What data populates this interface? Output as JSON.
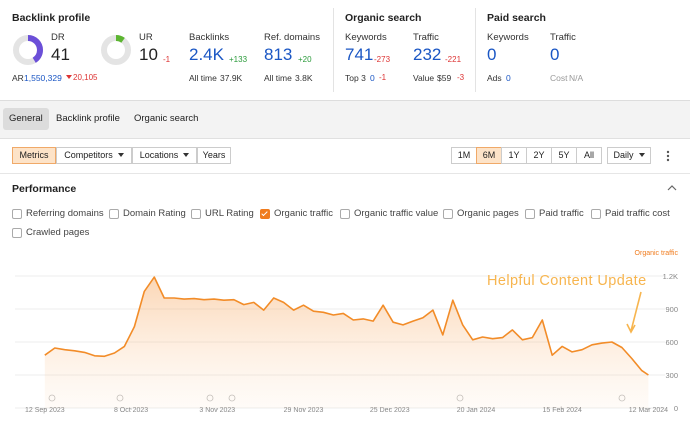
{
  "backlink_profile": {
    "title": "Backlink profile",
    "dr": {
      "label": "DR",
      "value": 41,
      "color": "#6b4fd8"
    },
    "ar": {
      "label": "AR",
      "value": "1,550,329",
      "change": "20,105"
    },
    "ur": {
      "label": "UR",
      "value": 10,
      "change": "-1",
      "color": "#5cb531"
    },
    "backlinks": {
      "label": "Backlinks",
      "value": "2.4K",
      "change": "+133",
      "sub_label": "All time",
      "sub_value": "37.9K"
    },
    "ref_domains": {
      "label": "Ref. domains",
      "value": "813",
      "change": "+20",
      "sub_label": "All time",
      "sub_value": "3.8K"
    }
  },
  "organic_search": {
    "title": "Organic search",
    "keywords": {
      "label": "Keywords",
      "value": "741",
      "change": "-273",
      "sub_label": "Top 3",
      "sub_value": "0",
      "sub_change": "-1"
    },
    "traffic": {
      "label": "Traffic",
      "value": "232",
      "change": "-221",
      "sub_label": "Value",
      "sub_value": "$59",
      "sub_change": "-3"
    }
  },
  "paid_search": {
    "title": "Paid search",
    "keywords": {
      "label": "Keywords",
      "value": "0",
      "sub_label": "Ads",
      "sub_value": "0"
    },
    "traffic": {
      "label": "Traffic",
      "value": "0",
      "sub_label": "Cost",
      "sub_value": "N/A"
    }
  },
  "tabs": [
    {
      "label": "General",
      "active": true
    },
    {
      "label": "Backlink profile",
      "active": false
    },
    {
      "label": "Organic search",
      "active": false
    }
  ],
  "toolbar": {
    "filters": [
      {
        "label": "Metrics",
        "active": true,
        "dropdown": false
      },
      {
        "label": "Competitors",
        "active": false,
        "dropdown": true
      },
      {
        "label": "Locations",
        "active": false,
        "dropdown": true
      },
      {
        "label": "Years",
        "active": false,
        "dropdown": false
      }
    ],
    "ranges": [
      {
        "label": "1M",
        "active": false
      },
      {
        "label": "6M",
        "active": true
      },
      {
        "label": "1Y",
        "active": false
      },
      {
        "label": "2Y",
        "active": false
      },
      {
        "label": "5Y",
        "active": false
      },
      {
        "label": "All",
        "active": false
      }
    ],
    "interval": "Daily"
  },
  "performance": {
    "title": "Performance",
    "metrics": [
      {
        "label": "Referring domains",
        "checked": false
      },
      {
        "label": "Domain Rating",
        "checked": false
      },
      {
        "label": "URL Rating",
        "checked": false
      },
      {
        "label": "Organic traffic",
        "checked": true
      },
      {
        "label": "Organic traffic value",
        "checked": false
      },
      {
        "label": "Organic pages",
        "checked": false
      },
      {
        "label": "Paid traffic",
        "checked": false
      },
      {
        "label": "Paid traffic cost",
        "checked": false
      },
      {
        "label": "Crawled pages",
        "checked": false
      }
    ]
  },
  "chart_data": {
    "type": "line",
    "y_label": "Organic traffic",
    "annotation": "Helpful Content Update",
    "color": "#f28c28",
    "grid": true,
    "x": [
      "2023-09-12",
      "2023-09-15",
      "2023-09-18",
      "2023-09-21",
      "2023-09-24",
      "2023-09-27",
      "2023-09-30",
      "2023-10-03",
      "2023-10-06",
      "2023-10-09",
      "2023-10-12",
      "2023-10-15",
      "2023-10-18",
      "2023-10-21",
      "2023-10-24",
      "2023-10-27",
      "2023-10-30",
      "2023-11-02",
      "2023-11-05",
      "2023-11-08",
      "2023-11-11",
      "2023-11-14",
      "2023-11-17",
      "2023-11-20",
      "2023-11-23",
      "2023-11-26",
      "2023-11-29",
      "2023-12-02",
      "2023-12-05",
      "2023-12-08",
      "2023-12-11",
      "2023-12-14",
      "2023-12-17",
      "2023-12-20",
      "2023-12-23",
      "2023-12-26",
      "2023-12-29",
      "2024-01-01",
      "2024-01-04",
      "2024-01-07",
      "2024-01-10",
      "2024-01-13",
      "2024-01-16",
      "2024-01-19",
      "2024-01-22",
      "2024-01-25",
      "2024-01-28",
      "2024-01-31",
      "2024-02-03",
      "2024-02-06",
      "2024-02-09",
      "2024-02-12",
      "2024-02-15",
      "2024-02-18",
      "2024-02-21",
      "2024-02-24",
      "2024-02-27",
      "2024-03-01",
      "2024-03-04",
      "2024-03-07",
      "2024-03-10",
      "2024-03-12"
    ],
    "values": [
      480,
      545,
      530,
      520,
      505,
      475,
      470,
      500,
      560,
      740,
      1060,
      1190,
      1000,
      1000,
      990,
      995,
      985,
      990,
      980,
      985,
      940,
      960,
      890,
      1000,
      960,
      890,
      935,
      880,
      870,
      845,
      860,
      800,
      810,
      790,
      935,
      780,
      755,
      790,
      820,
      890,
      665,
      980,
      755,
      620,
      645,
      630,
      640,
      710,
      620,
      640,
      800,
      480,
      560,
      510,
      530,
      575,
      590,
      600,
      550,
      450,
      340,
      300
    ],
    "xlim": [
      "2023-09-03",
      "2024-03-17"
    ],
    "xticks": [
      {
        "value": "2023-09-12",
        "label": "12 Sep 2023"
      },
      {
        "value": "2023-10-08",
        "label": "8 Oct 2023"
      },
      {
        "value": "2023-11-03",
        "label": "3 Nov 2023"
      },
      {
        "value": "2023-11-29",
        "label": "29 Nov 2023"
      },
      {
        "value": "2023-12-25",
        "label": "25 Dec 2023"
      },
      {
        "value": "2024-01-20",
        "label": "20 Jan 2024"
      },
      {
        "value": "2024-02-15",
        "label": "15 Feb 2024"
      },
      {
        "value": "2024-03-12",
        "label": "12 Mar 2024"
      }
    ],
    "ylim": [
      0,
      1300
    ],
    "yticks": [
      0,
      300,
      600,
      900,
      {
        "value": 1200,
        "label": "1.2K"
      }
    ]
  }
}
